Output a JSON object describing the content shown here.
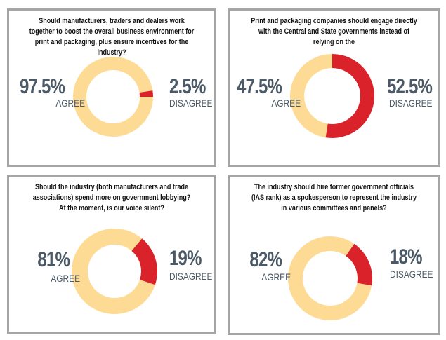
{
  "chart_data": [
    {
      "type": "pie",
      "title": "Should manufacturers, traders and dealers work together  to boost the overall business environment for print and packaging, plus ensure incentives for the industry?",
      "categories": [
        "AGREE",
        "DISAGREE"
      ],
      "values": [
        97.5,
        2.5
      ],
      "labels": [
        "97.5%",
        "2.5%"
      ],
      "start_angle": 81
    },
    {
      "type": "pie",
      "title": "Print and packaging companies should engage directly with the Central and State governments instead of relying on the",
      "categories": [
        "AGREE",
        "DISAGREE"
      ],
      "values": [
        47.5,
        52.5
      ],
      "labels": [
        "47.5%",
        "52.5%"
      ],
      "start_angle": 0
    },
    {
      "type": "pie",
      "title": "Should the industry (both manufacturers and trade associations) spend more on government lobbying? At the moment, is our voice silent?",
      "categories": [
        "AGREE",
        "DISAGREE"
      ],
      "values": [
        81,
        19
      ],
      "labels": [
        "81%",
        "19%"
      ],
      "start_angle": 40
    },
    {
      "type": "pie",
      "title": "The industry should hire former government officials (IAS rank) as a spokesperson to represent the industry in various committees and panels?",
      "categories": [
        "AGREE",
        "DISAGREE"
      ],
      "values": [
        82,
        18
      ],
      "labels": [
        "82%",
        "18%"
      ],
      "start_angle": 35
    }
  ],
  "colors": {
    "agree": "#fedb94",
    "disagree": "#d9222a",
    "text": "#4b5a66"
  }
}
